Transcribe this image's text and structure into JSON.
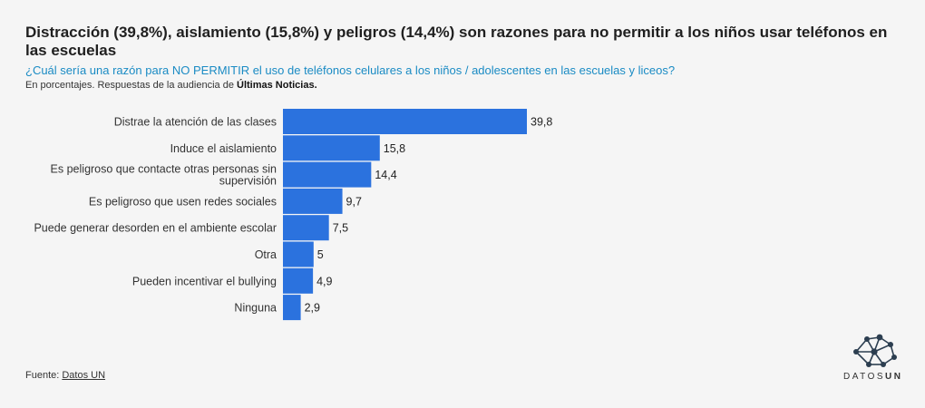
{
  "header": {
    "title": "Distracción (39,8%), aislamiento (15,8%) y peligros (14,4%) son razones para no permitir a los niños usar teléfonos en las escuelas",
    "subtitle": "¿Cuál sería una razón para NO PERMITIR el uso de teléfonos celulares a los niños / adolescentes en las escuelas y liceos?",
    "note_prefix": "En porcentajes. Respuestas de la audiencia de ",
    "note_source": "Últimas Noticias."
  },
  "footer": {
    "source_label": "Fuente: ",
    "source_link": "Datos UN"
  },
  "logo": {
    "text_light": "DATOS",
    "text_bold": "UN",
    "icon": "network-graph-icon"
  },
  "colors": {
    "bar": "#2b72de",
    "subtitle": "#1a8bc4",
    "background": "#f5f5f5"
  },
  "chart_data": {
    "type": "bar",
    "orientation": "horizontal",
    "categories": [
      [
        "Distrae la atención de las clases"
      ],
      [
        "Induce el aislamiento"
      ],
      [
        "Es peligroso que contacte otras personas sin",
        "supervisión"
      ],
      [
        "Es peligroso que usen redes sociales"
      ],
      [
        "Puede generar desorden en el ambiente escolar"
      ],
      [
        "Otra"
      ],
      [
        "Pueden incentivar el bullying"
      ],
      [
        "Ninguna"
      ]
    ],
    "values": [
      39.8,
      15.8,
      14.4,
      9.7,
      7.5,
      5,
      4.9,
      2.9
    ],
    "value_labels": [
      "39,8",
      "15,8",
      "14,4",
      "9,7",
      "7,5",
      "5",
      "4,9",
      "2,9"
    ],
    "xlim": [
      0,
      39.8
    ],
    "grid": false,
    "legend": false
  }
}
